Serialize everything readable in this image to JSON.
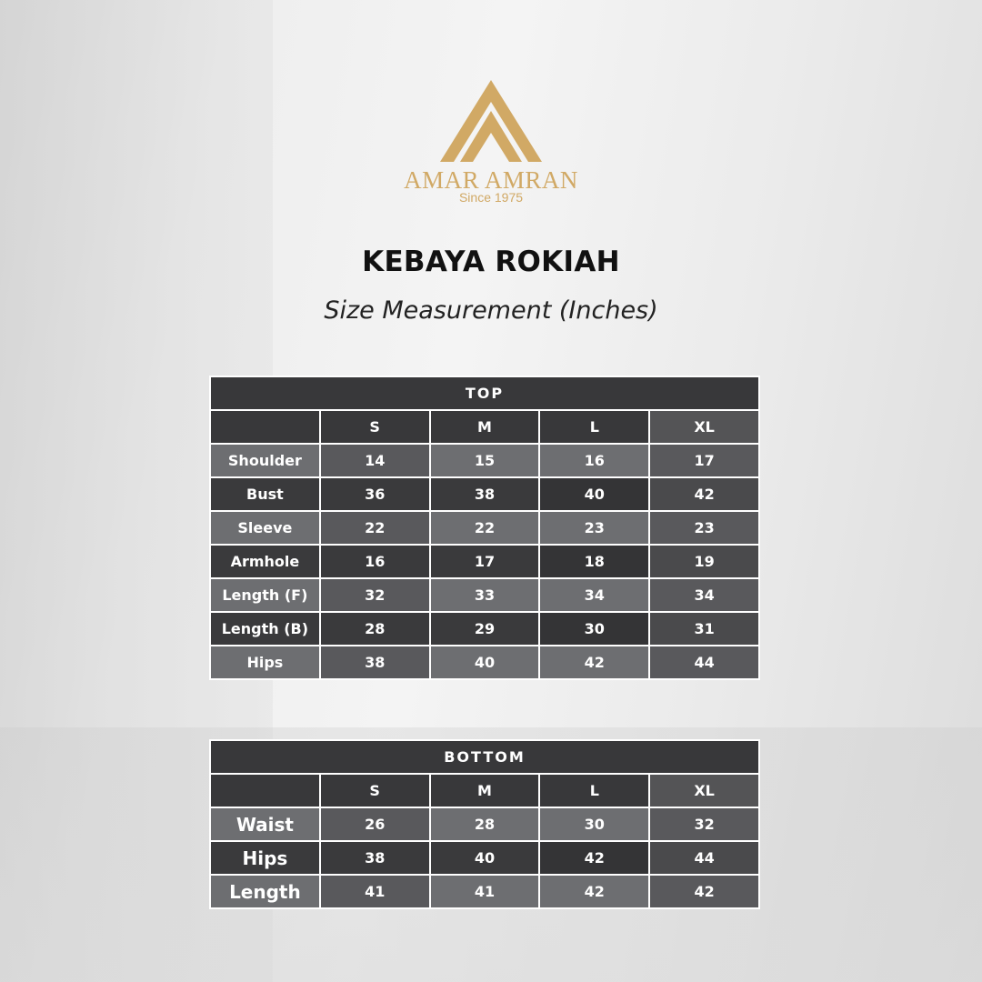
{
  "logo": {
    "brand": "AMAR AMRAN",
    "tagline": "Since 1975",
    "color": "#d1a965"
  },
  "title": "KEBAYA ROKIAH",
  "subtitle": "Size Measurement (Inches)",
  "tables": [
    {
      "id": "top",
      "heading": "TOP",
      "sizes": [
        "S",
        "M",
        "L",
        "XL"
      ],
      "rows": [
        {
          "label": "Shoulder",
          "values": [
            "14",
            "15",
            "16",
            "17"
          ]
        },
        {
          "label": "Bust",
          "values": [
            "36",
            "38",
            "40",
            "42"
          ]
        },
        {
          "label": "Sleeve",
          "values": [
            "22",
            "22",
            "23",
            "23"
          ]
        },
        {
          "label": "Armhole",
          "values": [
            "16",
            "17",
            "18",
            "19"
          ]
        },
        {
          "label": "Length (F)",
          "values": [
            "32",
            "33",
            "34",
            "34"
          ]
        },
        {
          "label": "Length (B)",
          "values": [
            "28",
            "29",
            "30",
            "31"
          ]
        },
        {
          "label": "Hips",
          "values": [
            "38",
            "40",
            "42",
            "44"
          ]
        }
      ]
    },
    {
      "id": "bottom",
      "heading": "BOTTOM",
      "sizes": [
        "S",
        "M",
        "L",
        "XL"
      ],
      "rows": [
        {
          "label": "Waist",
          "values": [
            "26",
            "28",
            "30",
            "32"
          ]
        },
        {
          "label": "Hips",
          "values": [
            "38",
            "40",
            "42",
            "44"
          ]
        },
        {
          "label": "Length",
          "values": [
            "41",
            "41",
            "42",
            "42"
          ]
        }
      ]
    }
  ]
}
